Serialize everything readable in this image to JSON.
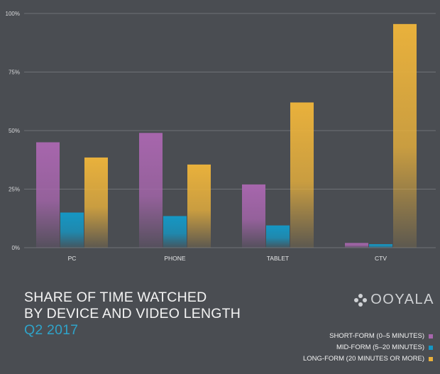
{
  "chart_data": {
    "type": "bar",
    "title": "SHARE OF TIME WATCHED BY DEVICE AND VIDEO LENGTH",
    "subtitle": "Q2 2017",
    "categories": [
      "PC",
      "PHONE",
      "TABLET",
      "CTV"
    ],
    "y_ticks": [
      "0%",
      "25%",
      "50%",
      "75%",
      "100%"
    ],
    "ylim": [
      0,
      100
    ],
    "grid": true,
    "legend_position": "bottom-right",
    "series": [
      {
        "name": "SHORT-FORM (0–5 MINUTES)",
        "color": "#a766ad",
        "values": [
          45,
          49,
          27,
          2
        ]
      },
      {
        "name": "MID-FORM (5–20 MINUTES)",
        "color": "#1597c4",
        "values": [
          15,
          13.5,
          9.5,
          1.5
        ]
      },
      {
        "name": "LONG-FORM (20 MINUTES OR MORE)",
        "color": "#e9b13c",
        "values": [
          38.5,
          35.5,
          62,
          95.5
        ]
      }
    ]
  },
  "header": {
    "title_line1": "SHARE OF TIME WATCHED",
    "title_line2": "BY DEVICE AND VIDEO LENGTH",
    "subtitle": "Q2 2017"
  },
  "logo": {
    "text": "OOYALA",
    "icon": "ooyala-logo-icon"
  }
}
